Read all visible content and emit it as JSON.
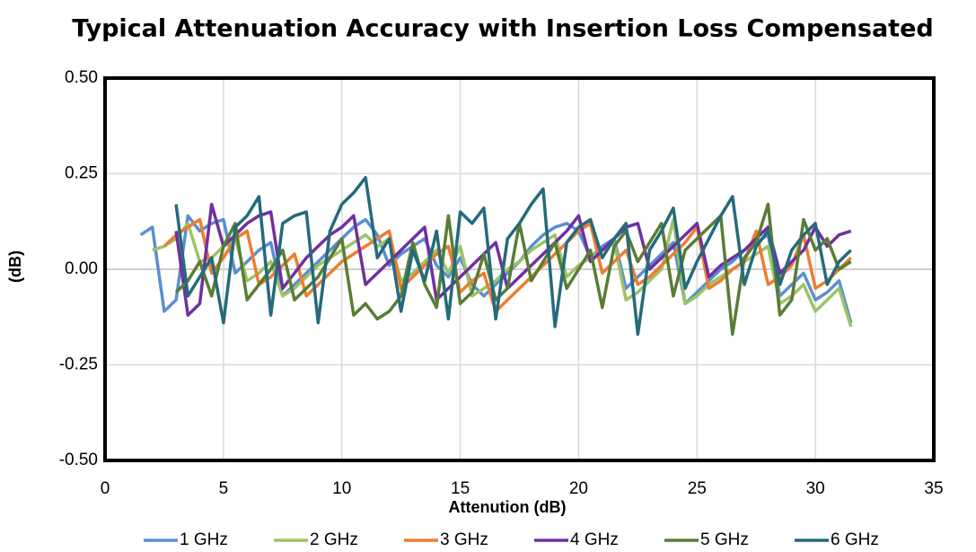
{
  "chart_data": {
    "type": "line",
    "title": "Typical Attenuation Accuracy with Insertion Loss Compensated",
    "x_label": "Attenution (dB)",
    "y_label": "(dB)",
    "x": [
      1.5,
      2,
      2.5,
      3,
      3.5,
      4,
      4.5,
      5,
      5.5,
      6,
      6.5,
      7,
      7.5,
      8,
      8.5,
      9,
      9.5,
      10,
      10.5,
      11,
      11.5,
      12,
      12.5,
      13,
      13.5,
      14,
      14.5,
      15,
      15.5,
      16,
      16.5,
      17,
      17.5,
      18,
      18.5,
      19,
      19.5,
      20,
      20.5,
      21,
      21.5,
      22,
      22.5,
      23,
      23.5,
      24,
      24.5,
      25,
      25.5,
      26,
      26.5,
      27,
      27.5,
      28,
      28.5,
      29,
      29.5,
      30,
      30.5,
      31,
      31.5
    ],
    "series": [
      {
        "name": "1 GHz",
        "color": "#5b8fd0",
        "values": [
          0.09,
          0.11,
          -0.11,
          -0.08,
          0.14,
          0.1,
          0.12,
          0.13,
          -0.01,
          0.02,
          0.05,
          0.07,
          -0.07,
          -0.04,
          -0.01,
          0.02,
          0.05,
          0.08,
          0.11,
          0.13,
          0.09,
          0.01,
          0.04,
          0.06,
          0.08,
          0.01,
          -0.02,
          0.03,
          -0.04,
          -0.07,
          -0.04,
          -0.01,
          0.02,
          0.06,
          0.09,
          0.11,
          0.12,
          0.1,
          0.03,
          0.06,
          0.08,
          -0.05,
          -0.02,
          0.01,
          0.04,
          0.07,
          -0.09,
          -0.06,
          -0.03,
          0.0,
          0.02,
          0.05,
          0.07,
          0.09,
          -0.07,
          -0.04,
          -0.01,
          -0.08,
          -0.06,
          -0.03,
          -0.14
        ]
      },
      {
        "name": "2 GHz",
        "color": "#9dc365",
        "values": [
          null,
          0.05,
          0.06,
          0.08,
          0.12,
          0.02,
          0.03,
          0.06,
          0.08,
          -0.03,
          -0.01,
          0.02,
          -0.07,
          -0.05,
          -0.02,
          0.01,
          0.03,
          0.05,
          0.07,
          0.09,
          0.06,
          0.08,
          -0.03,
          -0.01,
          0.02,
          0.05,
          -0.01,
          0.06,
          -0.07,
          -0.05,
          -0.03,
          0.0,
          0.02,
          0.05,
          0.07,
          0.09,
          -0.02,
          0.01,
          0.03,
          0.05,
          0.07,
          -0.08,
          -0.06,
          -0.03,
          0.0,
          0.13,
          -0.09,
          -0.07,
          -0.04,
          -0.02,
          0.0,
          0.02,
          0.04,
          0.06,
          -0.09,
          -0.07,
          -0.04,
          -0.11,
          -0.08,
          -0.05,
          -0.15
        ]
      },
      {
        "name": "3 GHz",
        "color": "#ed7d31",
        "values": [
          null,
          null,
          0.06,
          0.09,
          0.11,
          0.13,
          -0.01,
          0.03,
          0.08,
          0.1,
          -0.04,
          -0.02,
          0.01,
          0.04,
          -0.07,
          -0.04,
          -0.01,
          0.02,
          0.04,
          0.06,
          0.08,
          0.1,
          -0.05,
          -0.02,
          0.01,
          0.04,
          0.06,
          -0.06,
          -0.03,
          -0.01,
          -0.11,
          -0.08,
          -0.05,
          -0.02,
          0.01,
          0.04,
          0.07,
          0.1,
          0.12,
          -0.01,
          0.02,
          0.05,
          -0.04,
          -0.02,
          0.01,
          0.04,
          0.07,
          0.11,
          -0.05,
          -0.03,
          0.0,
          0.02,
          0.1,
          -0.04,
          -0.02,
          0.01,
          0.09,
          -0.05,
          -0.03,
          0.0,
          0.03
        ]
      },
      {
        "name": "4 GHz",
        "color": "#7030a0",
        "values": [
          null,
          null,
          null,
          0.1,
          -0.12,
          -0.09,
          0.17,
          0.06,
          0.09,
          0.12,
          0.14,
          0.15,
          -0.05,
          -0.01,
          0.03,
          0.06,
          0.09,
          0.11,
          0.14,
          -0.04,
          -0.01,
          0.02,
          0.05,
          0.08,
          0.11,
          -0.08,
          -0.05,
          -0.02,
          0.01,
          0.04,
          0.07,
          -0.05,
          -0.02,
          0.01,
          0.04,
          0.07,
          0.1,
          0.14,
          0.02,
          0.05,
          0.08,
          0.11,
          0.12,
          0.0,
          0.03,
          0.06,
          0.09,
          0.12,
          -0.02,
          0.01,
          0.03,
          0.05,
          0.08,
          0.11,
          -0.01,
          0.02,
          0.05,
          0.11,
          0.06,
          0.09,
          0.1
        ]
      },
      {
        "name": "5 GHz",
        "color": "#597d35",
        "values": [
          null,
          null,
          null,
          -0.06,
          -0.03,
          0.02,
          -0.07,
          0.06,
          0.12,
          -0.08,
          -0.04,
          0.0,
          0.05,
          -0.08,
          -0.05,
          -0.02,
          0.03,
          0.08,
          -0.12,
          -0.09,
          -0.13,
          -0.11,
          -0.07,
          0.07,
          -0.04,
          -0.1,
          0.14,
          -0.09,
          -0.06,
          0.04,
          -0.08,
          -0.05,
          0.12,
          -0.03,
          0.02,
          0.07,
          -0.05,
          0.0,
          0.05,
          -0.1,
          0.06,
          0.1,
          0.02,
          0.07,
          0.12,
          -0.07,
          0.05,
          0.08,
          0.11,
          0.14,
          -0.17,
          0.03,
          0.07,
          0.17,
          -0.12,
          -0.08,
          0.13,
          0.05,
          0.08,
          0.0,
          0.02
        ]
      },
      {
        "name": "6 GHz",
        "color": "#246b7b",
        "values": [
          null,
          null,
          null,
          0.17,
          -0.07,
          -0.02,
          0.03,
          -0.14,
          0.11,
          0.14,
          0.19,
          -0.12,
          0.12,
          0.14,
          0.15,
          -0.14,
          0.1,
          0.17,
          0.2,
          0.24,
          0.03,
          0.08,
          -0.11,
          0.05,
          -0.03,
          0.1,
          -0.13,
          0.15,
          0.12,
          0.16,
          -0.13,
          0.08,
          0.12,
          0.17,
          0.21,
          -0.15,
          0.07,
          0.11,
          0.13,
          0.03,
          0.08,
          0.12,
          -0.17,
          0.05,
          0.1,
          0.16,
          -0.05,
          0.02,
          0.08,
          0.14,
          0.19,
          -0.04,
          0.06,
          0.1,
          -0.04,
          0.05,
          0.09,
          0.12,
          -0.04,
          0.02,
          0.05
        ]
      }
    ],
    "xlim": [
      0,
      35
    ],
    "xticks": [
      0,
      5,
      10,
      15,
      20,
      25,
      30,
      35
    ],
    "ylim": [
      -0.5,
      0.5
    ],
    "yticks": [
      {
        "value": -0.5,
        "label": "-0.50"
      },
      {
        "value": -0.25,
        "label": "-0.25"
      },
      {
        "value": 0,
        "label": "0.00"
      },
      {
        "value": 0.25,
        "label": "0.25"
      },
      {
        "value": 0.5,
        "label": "0.50"
      }
    ],
    "grid": true,
    "legend": "bottom"
  }
}
